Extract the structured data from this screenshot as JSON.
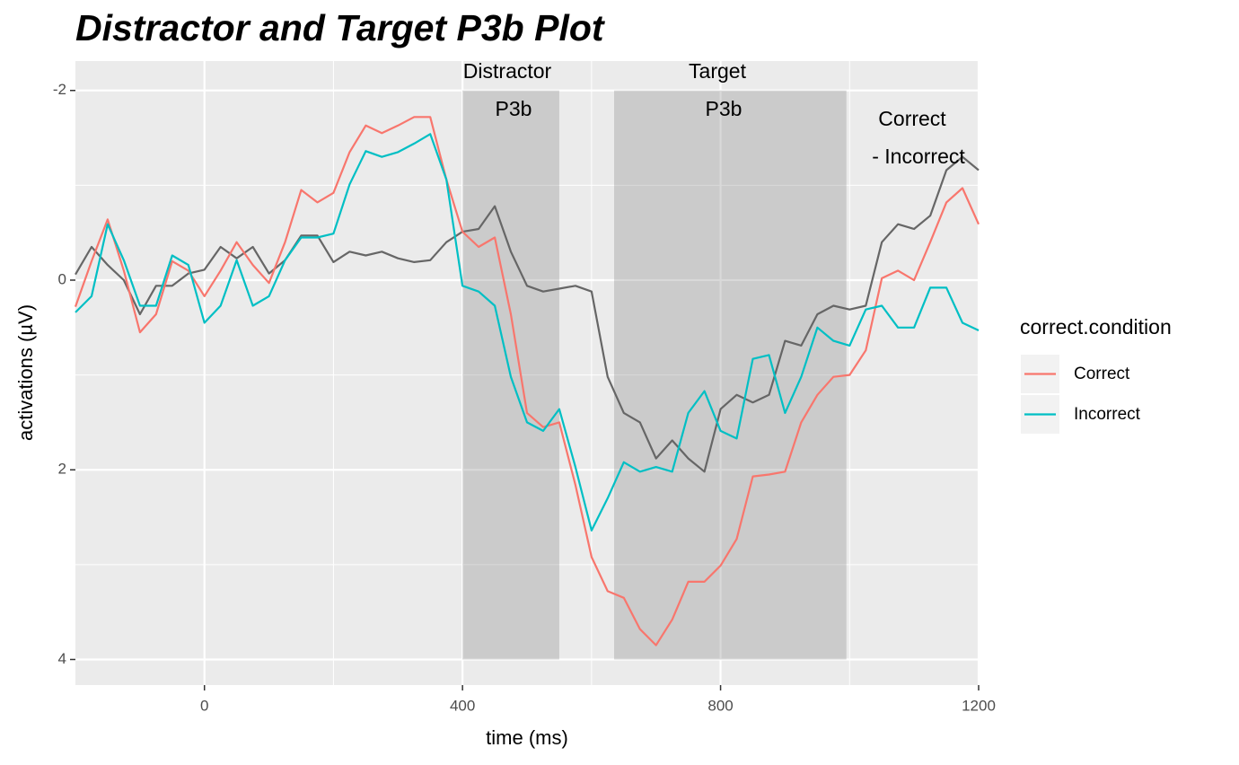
{
  "chart_data": {
    "type": "line",
    "title": "Distractor and Target P3b Plot",
    "x_label": "time (ms)",
    "y_label": "activations (µV)",
    "x": [
      -200,
      -175,
      -150,
      -125,
      -100,
      -75,
      -50,
      -25,
      0,
      25,
      50,
      75,
      100,
      125,
      150,
      175,
      200,
      225,
      250,
      275,
      300,
      325,
      350,
      375,
      400,
      425,
      450,
      475,
      500,
      525,
      550,
      575,
      600,
      625,
      650,
      675,
      700,
      725,
      750,
      775,
      800,
      825,
      850,
      875,
      900,
      925,
      950,
      975,
      1000,
      1025,
      1050,
      1075,
      1100,
      1125,
      1150,
      1175,
      1200
    ],
    "series": [
      {
        "name": "Correct",
        "color": "#F8766D",
        "values": [
          0.28,
          -0.2,
          -0.64,
          -0.1,
          0.55,
          0.36,
          -0.2,
          -0.1,
          0.17,
          -0.1,
          -0.4,
          -0.16,
          0.03,
          -0.4,
          -0.95,
          -0.82,
          -0.92,
          -1.35,
          -1.63,
          -1.55,
          -1.63,
          -1.72,
          -1.72,
          -1.06,
          -0.51,
          -0.35,
          -0.45,
          0.36,
          1.4,
          1.55,
          1.5,
          2.16,
          2.92,
          3.28,
          3.35,
          3.68,
          3.85,
          3.58,
          3.18,
          3.18,
          3.01,
          2.73,
          2.07,
          2.05,
          2.02,
          1.5,
          1.21,
          1.02,
          1.0,
          0.74,
          -0.02,
          -0.1,
          0,
          -0.4,
          -0.82,
          -0.97,
          -0.59
        ]
      },
      {
        "name": "Incorrect",
        "color": "#00BFC4",
        "values": [
          0.34,
          0.17,
          -0.59,
          -0.21,
          0.27,
          0.27,
          -0.26,
          -0.16,
          0.45,
          0.27,
          -0.21,
          0.27,
          0.17,
          -0.21,
          -0.45,
          -0.45,
          -0.49,
          -1.01,
          -1.36,
          -1.3,
          -1.35,
          -1.44,
          -1.54,
          -1.06,
          0.06,
          0.12,
          0.27,
          1.02,
          1.5,
          1.59,
          1.36,
          1.97,
          2.64,
          2.3,
          1.92,
          2.02,
          1.97,
          2.02,
          1.4,
          1.17,
          1.59,
          1.67,
          0.83,
          0.79,
          1.4,
          1.02,
          0.5,
          0.64,
          0.69,
          0.31,
          0.27,
          0.5,
          0.5,
          0.08,
          0.08,
          0.45,
          0.53
        ]
      }
    ],
    "difference": {
      "color": "#666666",
      "values": [
        -0.06,
        -0.35,
        -0.16,
        0,
        0.36,
        0.06,
        0.06,
        -0.07,
        -0.11,
        -0.35,
        -0.23,
        -0.35,
        -0.07,
        -0.21,
        -0.47,
        -0.47,
        -0.19,
        -0.3,
        -0.26,
        -0.3,
        -0.23,
        -0.19,
        -0.21,
        -0.4,
        -0.51,
        -0.54,
        -0.78,
        -0.3,
        0.06,
        0.12,
        0.09,
        0.06,
        0.12,
        1.02,
        1.4,
        1.5,
        1.88,
        1.69,
        1.88,
        2.02,
        1.36,
        1.21,
        1.29,
        1.21,
        0.64,
        0.69,
        0.36,
        0.27,
        0.31,
        0.27,
        -0.4,
        -0.59,
        -0.54,
        -0.68,
        -1.16,
        -1.3,
        -1.16
      ]
    },
    "shaded_regions": [
      {
        "xmin": 400,
        "xmax": 550,
        "ymin": -2,
        "ymax": 4
      },
      {
        "xmin": 635,
        "xmax": 995,
        "ymin": -2,
        "ymax": 4
      }
    ],
    "shade_color": "#808080",
    "annotations": [
      "Distractor",
      "P3b",
      "Target",
      "P3b",
      "Correct",
      "- Incorrect"
    ],
    "legend_title": "correct.condition",
    "legend_position": "right",
    "xlim": [
      -200,
      1200
    ],
    "xticks": [
      0,
      400,
      800,
      1200
    ],
    "minor_xticks": [
      200,
      600,
      1000
    ],
    "ylim": [
      -2.31,
      4.27
    ],
    "y_reversed": true,
    "yticks": [
      -2,
      0,
      2,
      4
    ],
    "minor_yticks": [
      -1,
      1,
      3
    ],
    "grid": true
  }
}
